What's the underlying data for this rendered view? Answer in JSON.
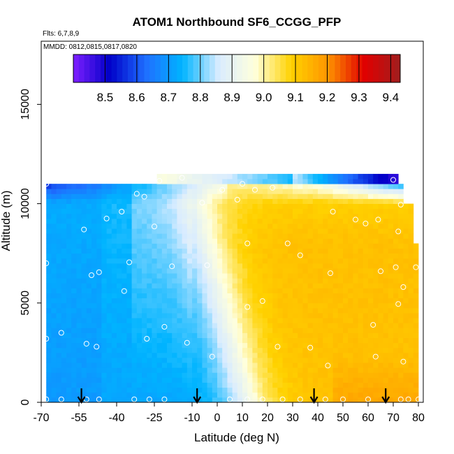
{
  "chart_data": {
    "type": "heatmap",
    "title": "ATOM1 Northbound SF6_CCGG_PFP",
    "subtitle_flights": "Flts: 6,7,8,9",
    "subtitle_dates": "MMDD: 0812,0815,0817,0820",
    "xlabel": "Latitude (deg N)",
    "ylabel": "Altitude (m)",
    "xlim": [
      -70,
      83
    ],
    "ylim": [
      0,
      17500
    ],
    "xticks": [
      -70,
      -55,
      -40,
      -25,
      -10,
      0,
      10,
      20,
      30,
      40,
      50,
      60,
      70,
      80
    ],
    "xtick_labels": [
      "-70",
      "-55",
      "-40",
      "-25",
      "-10",
      "0",
      "10",
      "20",
      "30",
      "40",
      "50",
      "60",
      "70",
      "80"
    ],
    "yticks": [
      0,
      5000,
      10000,
      15000
    ],
    "ytick_labels": [
      "0",
      "5000",
      "10000",
      "15000"
    ],
    "colorbar": {
      "range": [
        8.4,
        9.43
      ],
      "ticks": [
        8.5,
        8.6,
        8.7,
        8.8,
        8.9,
        9.0,
        9.1,
        9.2,
        9.3,
        9.4
      ],
      "tick_labels": [
        "8.5",
        "8.6",
        "8.7",
        "8.8",
        "8.9",
        "9.0",
        "9.1",
        "9.2",
        "9.3",
        "9.4"
      ],
      "colors": [
        "#7f1fff",
        "#0000c8",
        "#1f6fff",
        "#00b4ff",
        "#d9ecff",
        "#ffffdc",
        "#ffd200",
        "#ff9600",
        "#e10000",
        "#a01e1e"
      ]
    },
    "field": {
      "lat_range": [
        -68,
        80
      ],
      "alt_range": [
        0,
        11000
      ],
      "south_low_value": 8.75,
      "north_low_value": 9.12,
      "transition_lat_surface": 12,
      "transition_lat_top": -8,
      "upper_north_value": 9.05,
      "upper_layer_alt": [
        10000,
        11000
      ],
      "top_layer_alt": [
        11000,
        11500
      ],
      "top_layer_lat": [
        -25,
        71
      ]
    },
    "profile_latitudes": [
      -54,
      -8,
      38.5,
      67
    ],
    "sample_points": [
      {
        "lat": -68,
        "alt": 11000
      },
      {
        "lat": -68,
        "alt": 7000
      },
      {
        "lat": -68,
        "alt": 3200
      },
      {
        "lat": -68,
        "alt": 150
      },
      {
        "lat": -62,
        "alt": 3500
      },
      {
        "lat": -62,
        "alt": 150
      },
      {
        "lat": -53,
        "alt": 8700
      },
      {
        "lat": -52,
        "alt": 2950
      },
      {
        "lat": -52,
        "alt": 150
      },
      {
        "lat": -50,
        "alt": 6400
      },
      {
        "lat": -48,
        "alt": 2800
      },
      {
        "lat": -47,
        "alt": 6550
      },
      {
        "lat": -47,
        "alt": 150
      },
      {
        "lat": -44,
        "alt": 9250
      },
      {
        "lat": -38,
        "alt": 9600
      },
      {
        "lat": -37,
        "alt": 5600
      },
      {
        "lat": -35,
        "alt": 7050
      },
      {
        "lat": -33,
        "alt": 150
      },
      {
        "lat": -32,
        "alt": 10500
      },
      {
        "lat": -29,
        "alt": 10350
      },
      {
        "lat": -28,
        "alt": 3200
      },
      {
        "lat": -27,
        "alt": 150
      },
      {
        "lat": -25,
        "alt": 8850
      },
      {
        "lat": -23,
        "alt": 11150
      },
      {
        "lat": -21,
        "alt": 3800
      },
      {
        "lat": -21,
        "alt": 150
      },
      {
        "lat": -18,
        "alt": 6850
      },
      {
        "lat": -14,
        "alt": 11300
      },
      {
        "lat": -12,
        "alt": 3000
      },
      {
        "lat": -6,
        "alt": 10050
      },
      {
        "lat": -4,
        "alt": 6900
      },
      {
        "lat": -2,
        "alt": 2300
      },
      {
        "lat": 2,
        "alt": 10700
      },
      {
        "lat": 5,
        "alt": 150
      },
      {
        "lat": 8,
        "alt": 10200
      },
      {
        "lat": 10,
        "alt": 11000
      },
      {
        "lat": 12,
        "alt": 4800
      },
      {
        "lat": 12,
        "alt": 8000
      },
      {
        "lat": 12,
        "alt": 150
      },
      {
        "lat": 15,
        "alt": 10700
      },
      {
        "lat": 18,
        "alt": 5100
      },
      {
        "lat": 18,
        "alt": 150
      },
      {
        "lat": 22,
        "alt": 10800
      },
      {
        "lat": 24,
        "alt": 2800
      },
      {
        "lat": 26,
        "alt": 150
      },
      {
        "lat": 28,
        "alt": 8000
      },
      {
        "lat": 33,
        "alt": 7400
      },
      {
        "lat": 33,
        "alt": 150
      },
      {
        "lat": 37,
        "alt": 2750
      },
      {
        "lat": 43,
        "alt": 150
      },
      {
        "lat": 44,
        "alt": 1850
      },
      {
        "lat": 45,
        "alt": 6500
      },
      {
        "lat": 46,
        "alt": 9600
      },
      {
        "lat": 50,
        "alt": 150
      },
      {
        "lat": 55,
        "alt": 9200
      },
      {
        "lat": 59,
        "alt": 9000
      },
      {
        "lat": 60,
        "alt": 150
      },
      {
        "lat": 62,
        "alt": 3900
      },
      {
        "lat": 63,
        "alt": 2300
      },
      {
        "lat": 64,
        "alt": 9200
      },
      {
        "lat": 65,
        "alt": 6600
      },
      {
        "lat": 70,
        "alt": 11200
      },
      {
        "lat": 71,
        "alt": 6800
      },
      {
        "lat": 72,
        "alt": 8600
      },
      {
        "lat": 72,
        "alt": 4950
      },
      {
        "lat": 73,
        "alt": 9950
      },
      {
        "lat": 73,
        "alt": 150
      },
      {
        "lat": 74,
        "alt": 5800
      },
      {
        "lat": 74,
        "alt": 2050
      },
      {
        "lat": 76,
        "alt": 150
      },
      {
        "lat": 79,
        "alt": 6800
      },
      {
        "lat": 80,
        "alt": 150
      }
    ]
  }
}
